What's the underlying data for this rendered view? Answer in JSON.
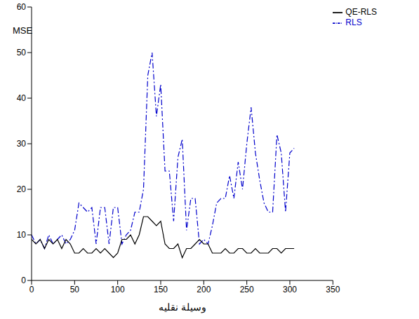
{
  "chart_data": {
    "type": "line",
    "x_label": "وسیلة نقلیه",
    "y_label": "MSE",
    "x": [
      0,
      5,
      10,
      15,
      20,
      25,
      30,
      35,
      40,
      45,
      50,
      55,
      60,
      65,
      70,
      75,
      80,
      85,
      90,
      95,
      100,
      105,
      110,
      115,
      120,
      125,
      130,
      135,
      140,
      145,
      150,
      155,
      160,
      165,
      170,
      175,
      180,
      185,
      190,
      195,
      200,
      205,
      210,
      215,
      220,
      225,
      230,
      235,
      240,
      245,
      250,
      255,
      260,
      265,
      270,
      275,
      280,
      285,
      290,
      295,
      300,
      305
    ],
    "series": [
      {
        "name": "RLS",
        "color": "#0000cc",
        "line_style": "dashdot",
        "values": [
          10,
          8,
          9,
          7,
          10,
          8,
          9,
          10,
          8,
          9,
          11,
          17,
          16,
          15,
          16,
          8,
          16,
          16,
          8,
          16,
          16,
          8,
          10,
          11,
          15,
          15,
          20,
          45,
          50,
          36,
          43,
          24,
          24,
          13,
          27,
          31,
          11,
          18,
          18,
          8,
          9,
          8,
          12,
          17,
          18,
          18,
          23,
          18,
          26,
          20,
          30,
          38,
          28,
          22,
          17,
          15,
          15,
          32,
          28,
          15,
          28,
          29
        ]
      },
      {
        "name": "QE-RLS",
        "color": "#000000",
        "line_style": "solid",
        "values": [
          9,
          8,
          9,
          7,
          9,
          8,
          9,
          7,
          9,
          8,
          6,
          6,
          7,
          6,
          6,
          7,
          6,
          7,
          6,
          5,
          6,
          9,
          9,
          10,
          8,
          10,
          14,
          14,
          13,
          12,
          13,
          8,
          7,
          7,
          8,
          5,
          7,
          7,
          8,
          9,
          8,
          8,
          6,
          6,
          6,
          7,
          6,
          6,
          7,
          7,
          6,
          6,
          7,
          6,
          6,
          6,
          7,
          7,
          6,
          7,
          7,
          7
        ]
      }
    ],
    "xlim": [
      0,
      350
    ],
    "xticks": [
      0,
      50,
      100,
      150,
      200,
      250,
      300,
      350
    ],
    "ylim": [
      0,
      60
    ],
    "yticks": [
      0,
      10,
      20,
      30,
      40,
      50,
      60
    ],
    "legend": "upper right",
    "grid": false
  }
}
